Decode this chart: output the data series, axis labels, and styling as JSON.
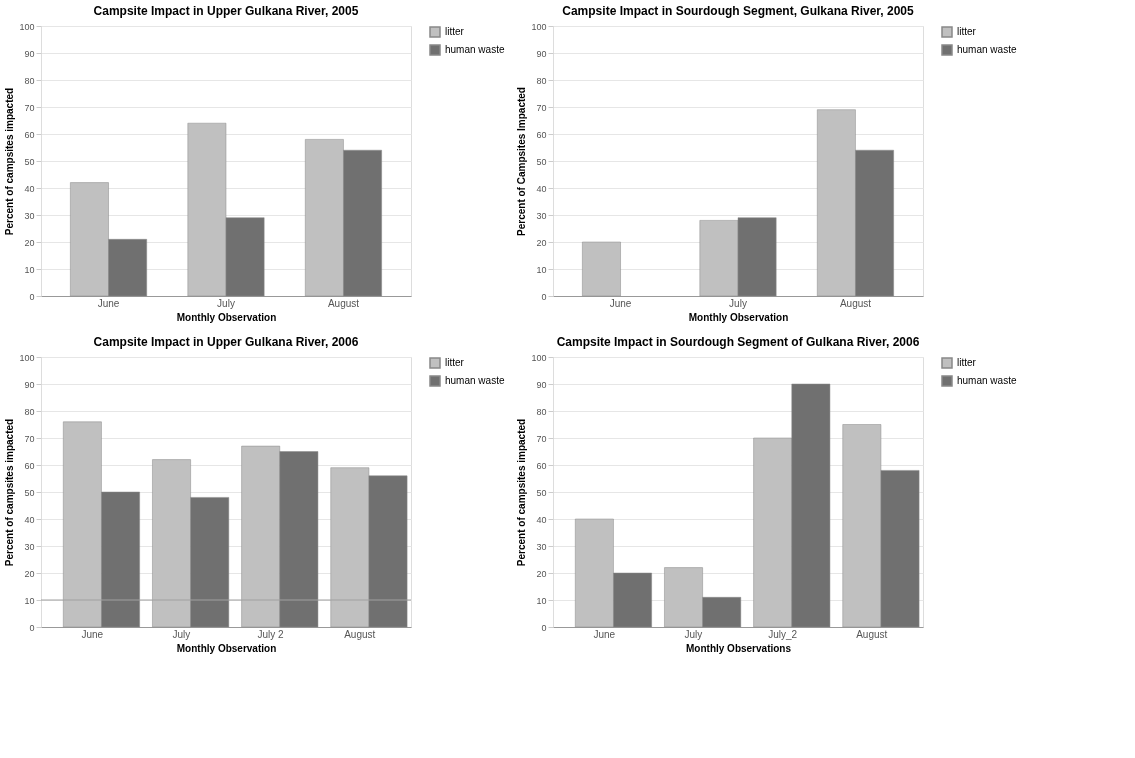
{
  "chart_data": [
    {
      "type": "bar",
      "title": "Campsite Impact in Upper Gulkana River, 2005",
      "xlabel": "Monthly Observation",
      "ylabel": "Percent of campsites impacted",
      "categories": [
        "June",
        "July",
        "August"
      ],
      "series": [
        {
          "name": "litter",
          "color": "#c0c0c0",
          "values": [
            42,
            64,
            58
          ]
        },
        {
          "name": "human waste",
          "color": "#707070",
          "values": [
            21,
            29,
            54
          ]
        }
      ],
      "ylim": [
        0,
        100
      ],
      "yticks": [
        0,
        10,
        20,
        30,
        40,
        50,
        60,
        70,
        80,
        90,
        100
      ],
      "grid": "y",
      "legend": "right"
    },
    {
      "type": "bar",
      "title": "Campsite Impact in Sourdough Segment, Gulkana River, 2005",
      "xlabel": "Monthly Observation",
      "ylabel": "Percent of Campsites Impacted",
      "categories": [
        "June",
        "July",
        "August"
      ],
      "series": [
        {
          "name": "litter",
          "color": "#c0c0c0",
          "values": [
            20,
            28,
            69
          ]
        },
        {
          "name": "human waste",
          "color": "#707070",
          "values": [
            null,
            29,
            54
          ]
        }
      ],
      "ylim": [
        0,
        100
      ],
      "yticks": [
        0,
        10,
        20,
        30,
        40,
        50,
        60,
        70,
        80,
        90,
        100
      ],
      "grid": "y",
      "legend": "right"
    },
    {
      "type": "bar",
      "title": "Campsite Impact in Upper Gulkana River, 2006",
      "xlabel": "Monthly Observation",
      "ylabel": "Percent of campsites impacted",
      "categories": [
        "June",
        "July",
        "July 2",
        "August"
      ],
      "series": [
        {
          "name": "litter",
          "color": "#c0c0c0",
          "values": [
            76,
            62,
            67,
            59
          ]
        },
        {
          "name": "human waste",
          "color": "#707070",
          "values": [
            50,
            48,
            65,
            56
          ]
        }
      ],
      "ylim": [
        0,
        100
      ],
      "yticks": [
        0,
        10,
        20,
        30,
        40,
        50,
        60,
        70,
        80,
        90,
        100
      ],
      "grid": "y",
      "legend": "right",
      "ref_lines": [
        {
          "axis": "y",
          "value": 10,
          "color": "#a0a0a0"
        }
      ]
    },
    {
      "type": "bar",
      "title": "Campsite Impact in Sourdough Segment of Gulkana River, 2006",
      "xlabel": "Monthly Observations",
      "ylabel": "Percent of campsites impacted",
      "categories": [
        "June",
        "July",
        "July_2",
        "August"
      ],
      "series": [
        {
          "name": "litter",
          "color": "#c0c0c0",
          "values": [
            40,
            22,
            70,
            75
          ]
        },
        {
          "name": "human waste",
          "color": "#707070",
          "values": [
            20,
            11,
            90,
            58
          ]
        }
      ],
      "ylim": [
        0,
        100
      ],
      "yticks": [
        0,
        10,
        20,
        30,
        40,
        50,
        60,
        70,
        80,
        90,
        100
      ],
      "grid": "y",
      "legend": "right"
    }
  ]
}
